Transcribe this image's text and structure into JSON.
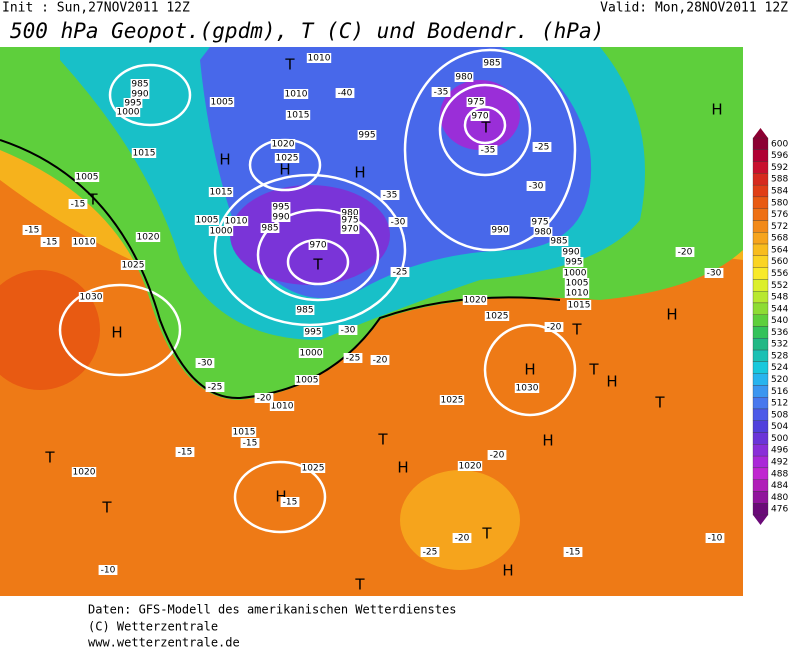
{
  "header": {
    "init": "Init : Sun,27NOV2011 12Z",
    "valid": "Valid: Mon,28NOV2011 12Z",
    "title": "500 hPa Geopot.(gpdm), T (C) und Bodendr. (hPa)"
  },
  "map": {
    "labels": [
      "H",
      "H",
      "H",
      "H",
      "H",
      "H",
      "H",
      "H",
      "H",
      "H",
      "H",
      "H",
      "T",
      "T",
      "T",
      "T",
      "T",
      "T",
      "T",
      "T",
      "T",
      "T",
      "T",
      "T",
      "985",
      "990",
      "995",
      "1000",
      "1005",
      "1010",
      "1010",
      "1015",
      "1015",
      "1020",
      "1025",
      "1005",
      "1010",
      "1015",
      "1020",
      "1025",
      "1030",
      "980",
      "985",
      "975",
      "970",
      "995",
      "990",
      "975",
      "980",
      "985",
      "990",
      "995",
      "1000",
      "1005",
      "1010",
      "1015",
      "1020",
      "1025",
      "1030",
      "1025",
      "1020",
      "1025",
      "1020",
      "1015",
      "1010",
      "1005",
      "1000",
      "995",
      "985",
      "970",
      "995",
      "990",
      "985",
      "980",
      "975",
      "970",
      "1005",
      "1010",
      "1000",
      "-15",
      "-15",
      "-15",
      "-35",
      "-30",
      "-25",
      "-20",
      "-30",
      "-30",
      "-25",
      "-20",
      "-30",
      "-25",
      "-20",
      "-15",
      "-15",
      "-20",
      "-15",
      "-20",
      "-25",
      "-15",
      "-10",
      "-10",
      "-20",
      "-40",
      "-35",
      "-35",
      "-30",
      "-25"
    ]
  },
  "colorbar": {
    "ticks": [
      600,
      596,
      592,
      588,
      584,
      580,
      576,
      572,
      568,
      564,
      560,
      556,
      552,
      548,
      544,
      540,
      536,
      532,
      528,
      524,
      520,
      516,
      512,
      508,
      504,
      500,
      496,
      492,
      488,
      484,
      480,
      476
    ],
    "colors": [
      "#8c0032",
      "#b00033",
      "#c8102e",
      "#d62a1e",
      "#e03e16",
      "#e85a12",
      "#ee7014",
      "#f28a18",
      "#f6a41c",
      "#f8bc1e",
      "#fad424",
      "#f8ea2a",
      "#dcef2c",
      "#b8e830",
      "#8edc34",
      "#5ecf3c",
      "#34c25a",
      "#22b884",
      "#1cc0b4",
      "#18c8dc",
      "#28b4ee",
      "#3c96f0",
      "#4878ee",
      "#4c5ae8",
      "#5040dc",
      "#6a34d8",
      "#8a2ed8",
      "#aa28d8",
      "#c026d0",
      "#b01eb8",
      "#90149c",
      "#6a0a78"
    ]
  },
  "footer": [
    "Daten: GFS-Modell des amerikanischen Wetterdienstes",
    "(C) Wetterzentrale",
    "www.wetterzentrale.de"
  ]
}
